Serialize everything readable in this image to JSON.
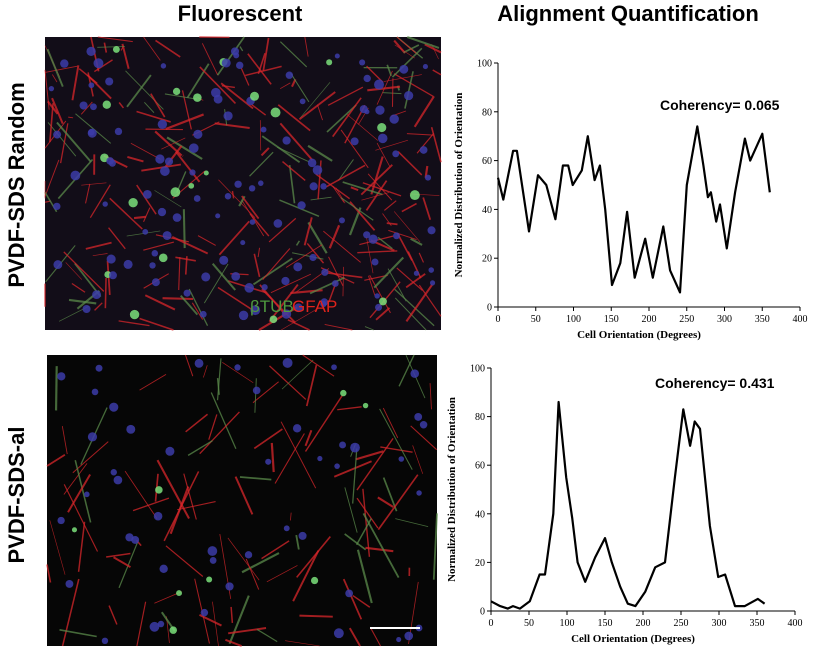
{
  "figure": {
    "column_titles": [
      "Fluorescent",
      "Alignment Quantification"
    ],
    "row_labels": [
      "PVDF-SDS Random",
      "PVDF-SDS-al"
    ],
    "image_labels": [
      {
        "text": "βTUB",
        "color": "#4f9a3f"
      },
      {
        "text": "GFAP",
        "color": "#e0231c"
      }
    ]
  },
  "chart_data": [
    {
      "type": "line",
      "x": [
        0,
        7,
        20,
        25,
        41,
        53,
        64,
        76,
        86,
        93,
        99,
        111,
        119,
        128,
        135,
        142,
        151,
        162,
        171,
        181,
        195,
        205,
        219,
        228,
        241,
        250,
        264,
        272,
        278,
        282,
        289,
        294,
        303,
        314,
        327,
        334,
        350,
        360
      ],
      "values": [
        53,
        44,
        64,
        64,
        31,
        54,
        50,
        36,
        58,
        58,
        50,
        56,
        70,
        52,
        58,
        40,
        9,
        18,
        39,
        12,
        28,
        12,
        33,
        15,
        6,
        50,
        74,
        58,
        45,
        47,
        35,
        42,
        24,
        47,
        69,
        60,
        71,
        47
      ],
      "color": "#000000",
      "annotation": "Coherency= 0.065",
      "xlabel": "Cell Orientation (Degrees)",
      "ylabel": "Normalized Distribution of Orientation",
      "xlim": [
        0,
        400
      ],
      "ylim": [
        0,
        100
      ],
      "xticks": [
        0,
        50,
        100,
        150,
        200,
        250,
        300,
        350,
        400
      ],
      "yticks": [
        0,
        20,
        40,
        60,
        80,
        100
      ]
    },
    {
      "type": "line",
      "x": [
        0,
        12,
        22,
        29,
        38,
        51,
        64,
        71,
        82,
        89,
        99,
        107,
        114,
        124,
        137,
        150,
        159,
        170,
        180,
        190,
        203,
        216,
        229,
        242,
        253,
        262,
        268,
        275,
        288,
        299,
        308,
        321,
        334,
        351,
        360
      ],
      "values": [
        4,
        2,
        1,
        2,
        1,
        4,
        15,
        15,
        40,
        86,
        55,
        38,
        20,
        12,
        22,
        30,
        20,
        10,
        3,
        2,
        8,
        18,
        20,
        55,
        83,
        68,
        78,
        75,
        35,
        14,
        15,
        2,
        2,
        5,
        3
      ],
      "color": "#000000",
      "annotation": "Coherency= 0.431",
      "xlabel": "Cell Orientation (Degrees)",
      "ylabel": "Normalized Distribution of Orientation",
      "xlim": [
        0,
        400
      ],
      "ylim": [
        0,
        100
      ],
      "xticks": [
        0,
        50,
        100,
        150,
        200,
        250,
        300,
        350,
        400
      ],
      "yticks": [
        0,
        20,
        40,
        60,
        80,
        100
      ]
    }
  ]
}
